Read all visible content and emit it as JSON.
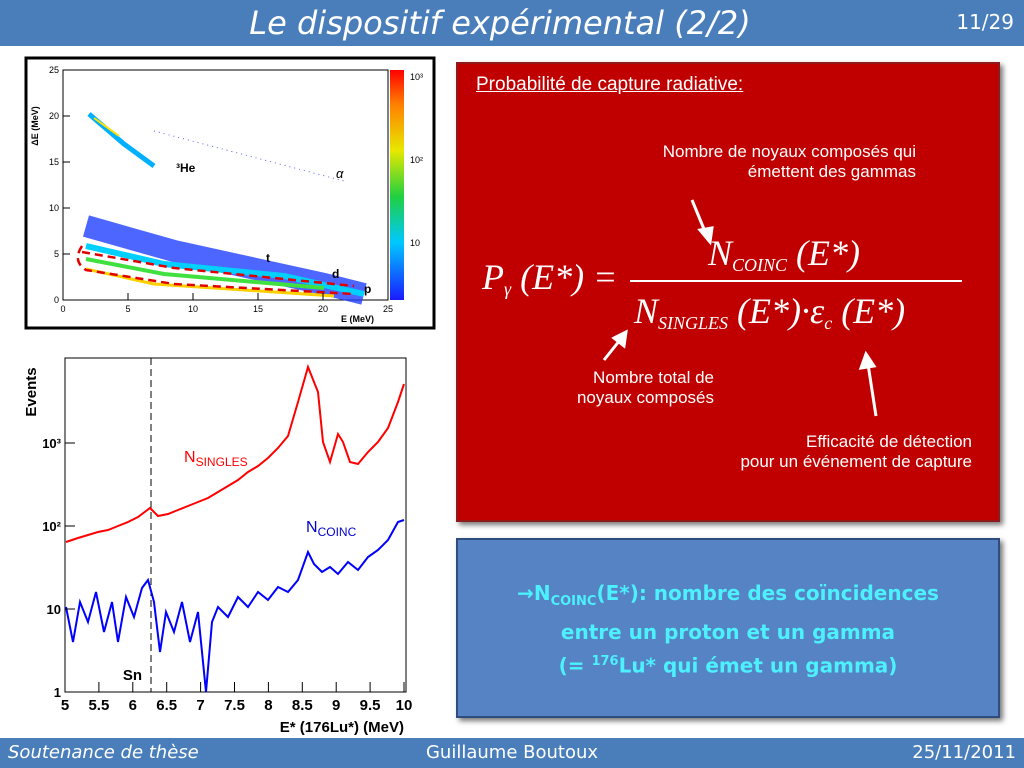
{
  "header": {
    "title": "Le dispositif expérimental (2/2)",
    "page": "11/29"
  },
  "figure_de": {
    "y_label": "ΔE (MeV)",
    "x_label": "E (MeV)",
    "yticks": [
      "0",
      "5",
      "10",
      "15",
      "20",
      "25"
    ],
    "xticks": [
      "0",
      "5",
      "10",
      "15",
      "20",
      "25"
    ],
    "colorbar_ticks": [
      "10",
      "10²",
      "10³"
    ],
    "labels": {
      "he3": "³He",
      "alpha": "α",
      "t": "t",
      "d": "d",
      "p": "p"
    }
  },
  "spectrum": {
    "y_label": "Events",
    "x_label": "E* (176Lu*) (MeV)",
    "yticks": [
      "1",
      "10",
      "10²",
      "10³"
    ],
    "xticks": [
      "5",
      "5.5",
      "6",
      "6.5",
      "7",
      "7.5",
      "8",
      "8.5",
      "9",
      "9.5",
      "10"
    ],
    "singles": {
      "main": "N",
      "sub": "SINGLES"
    },
    "coinc": {
      "main": "N",
      "sub": "COINC"
    },
    "sn": "Sn"
  },
  "red_box": {
    "heading": "Probabilité de capture radiative:",
    "note_top": [
      "Nombre de noyaux composés qui",
      "émettent des gammas"
    ],
    "note_left": [
      "Nombre total de",
      "noyaux composés"
    ],
    "note_right": [
      "Efficacité de détection",
      "pour un événement de capture"
    ],
    "formula": {
      "lhs": "P",
      "lhs_sub": "γ",
      "lhs_rest": "(E*) =",
      "num": "N",
      "num_sub": "COINC",
      "num_rest": "(E*)",
      "den": "N",
      "den_sub": "SINGLES",
      "den_rest": "(E*)·",
      "eps": "ε",
      "eps_sub": "c",
      "den_end": "(E*)"
    }
  },
  "blue_box": {
    "arrow_n": "→N",
    "sub": "COINC",
    "line1_rest": "(E*): nombre des coïncidences",
    "line2": "entre un proton et un gamma",
    "line3_start": "(= ",
    "sup": "176",
    "line3_rest": "Lu* qui émet un gamma)"
  },
  "footer": {
    "left": "Soutenance de thèse",
    "center": "Guillaume Boutoux",
    "right": "25/11/2011"
  }
}
